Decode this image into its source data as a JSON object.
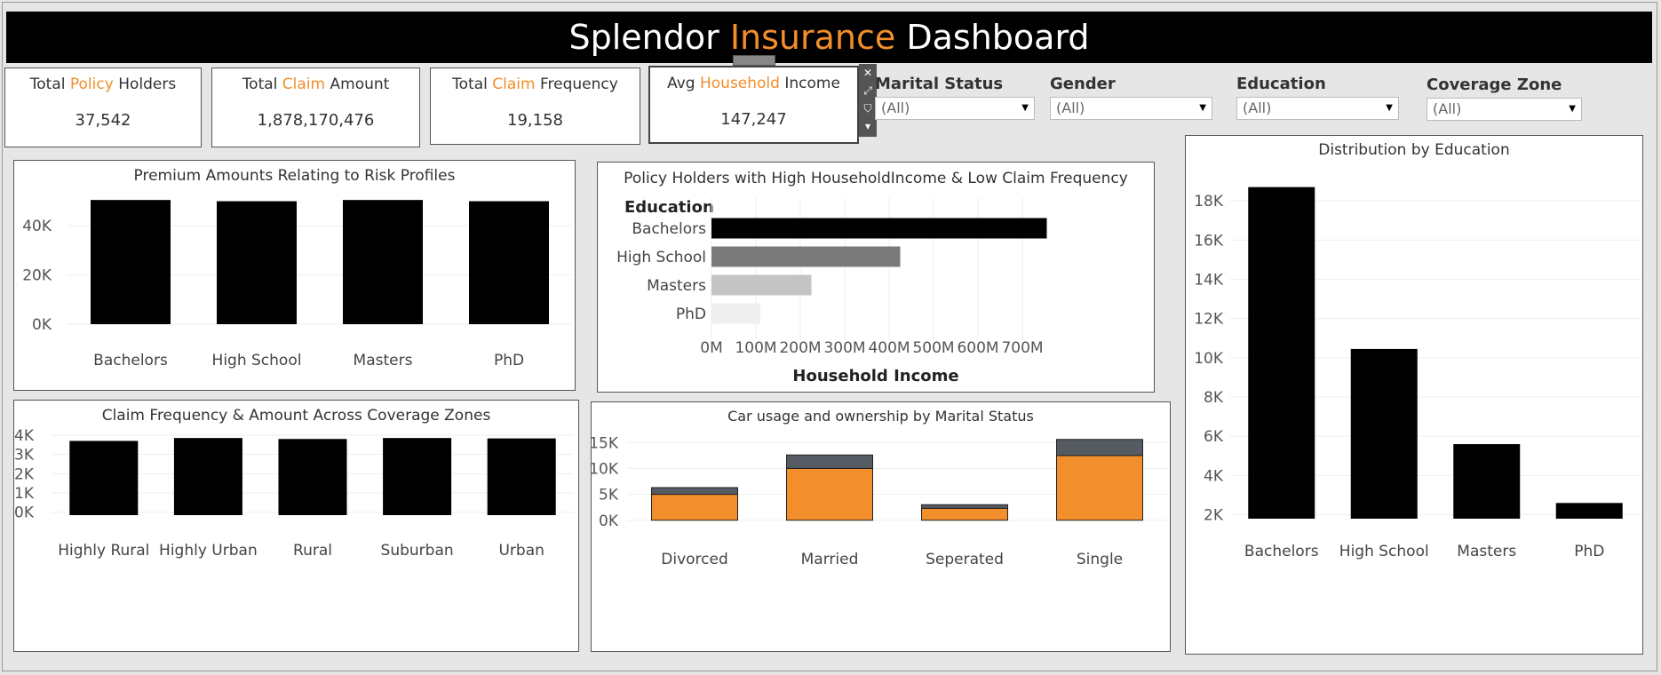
{
  "header": {
    "title_part1": "Splendor",
    "title_accent": "Insurance",
    "title_part2": "Dashboard"
  },
  "colors": {
    "accent": "#f28e2b",
    "bar": "#000000",
    "stack_top": "#555a63"
  },
  "kpis": [
    {
      "pre": "Total",
      "accent": "Policy",
      "post": "Holders",
      "value": "37,542"
    },
    {
      "pre": "Total",
      "accent": "Claim",
      "post": "Amount",
      "value": "1,878,170,476"
    },
    {
      "pre": "Total",
      "accent": "Claim",
      "post": "Frequency",
      "value": "19,158"
    },
    {
      "pre": "Avg",
      "accent": "Household",
      "post": "Income",
      "value": "147,247"
    }
  ],
  "tools": {
    "close": "✕",
    "popout": "⤢",
    "filter": "⛉",
    "more": "▾"
  },
  "filters": [
    {
      "label": "Marital Status",
      "value": "(All)"
    },
    {
      "label": "Gender",
      "value": "(All)"
    },
    {
      "label": "Education",
      "value": "(All)"
    },
    {
      "label": "Coverage Zone",
      "value": "(All)"
    }
  ],
  "panels": {
    "premium": {
      "title": "Premium Amounts Relating to Risk Profiles"
    },
    "highincome": {
      "title": "Policy Holders with High HouseholdIncome & Low Claim Frequency",
      "dim_label": "Education",
      "xlabel": "Household Income"
    },
    "education": {
      "title": "Distribution by Education"
    },
    "claims": {
      "title": "Claim Frequency & Amount Across Coverage Zones"
    },
    "car": {
      "title": "Car usage and ownership by Marital Status"
    }
  },
  "chart_data": [
    {
      "id": "premium",
      "type": "bar",
      "title": "Premium Amounts Relating to Risk Profiles",
      "categories": [
        "Bachelors",
        "High School",
        "Masters",
        "PhD"
      ],
      "values": [
        50500,
        50000,
        50500,
        50000
      ],
      "ylim": [
        0,
        52000
      ],
      "yticks": [
        {
          "v": 0,
          "label": "0K"
        },
        {
          "v": 20000,
          "label": "20K"
        },
        {
          "v": 40000,
          "label": "40K"
        }
      ],
      "grid": true
    },
    {
      "id": "highincome",
      "type": "bar",
      "orientation": "horizontal",
      "title": "Policy Holders with High HouseholdIncome & Low Claim Frequency",
      "categories": [
        "Bachelors",
        "High School",
        "Masters",
        "PhD"
      ],
      "values": [
        755000000,
        425000000,
        225000000,
        110000000
      ],
      "colors": [
        "#000000",
        "#7a7a7a",
        "#c4c4c4",
        "#efefef"
      ],
      "xlim": [
        0,
        800000000
      ],
      "xticks": [
        {
          "v": 0,
          "label": "0M"
        },
        {
          "v": 100000000,
          "label": "100M"
        },
        {
          "v": 200000000,
          "label": "200M"
        },
        {
          "v": 300000000,
          "label": "300M"
        },
        {
          "v": 400000000,
          "label": "400M"
        },
        {
          "v": 500000000,
          "label": "500M"
        },
        {
          "v": 600000000,
          "label": "600M"
        },
        {
          "v": 700000000,
          "label": "700M"
        }
      ],
      "xlabel": "Household Income",
      "ylabel": "Education",
      "grid": true
    },
    {
      "id": "education",
      "type": "bar",
      "title": "Distribution by Education",
      "categories": [
        "Bachelors",
        "High School",
        "Masters",
        "PhD"
      ],
      "values": [
        18700,
        10450,
        5600,
        2600
      ],
      "ylim": [
        1800,
        19500
      ],
      "yticks": [
        {
          "v": 2000,
          "label": "2K"
        },
        {
          "v": 4000,
          "label": "4K"
        },
        {
          "v": 6000,
          "label": "6K"
        },
        {
          "v": 8000,
          "label": "8K"
        },
        {
          "v": 10000,
          "label": "10K"
        },
        {
          "v": 12000,
          "label": "12K"
        },
        {
          "v": 14000,
          "label": "14K"
        },
        {
          "v": 16000,
          "label": "16K"
        },
        {
          "v": 18000,
          "label": "18K"
        }
      ],
      "grid": true
    },
    {
      "id": "claims",
      "type": "bar",
      "title": "Claim Frequency & Amount Across Coverage Zones",
      "categories": [
        "Highly Rural",
        "Highly Urban",
        "Rural",
        "Suburban",
        "Urban"
      ],
      "values": [
        3700,
        3850,
        3800,
        3850,
        3830
      ],
      "ylim": [
        -150,
        3950
      ],
      "yticks": [
        {
          "v": 0,
          "label": "0K"
        },
        {
          "v": 1000,
          "label": "1K"
        },
        {
          "v": 2000,
          "label": "2K"
        },
        {
          "v": 3000,
          "label": "3K"
        },
        {
          "v": 4000,
          "label": "4K"
        }
      ],
      "grid": true
    },
    {
      "id": "car",
      "type": "bar",
      "stacked": true,
      "title": "Car usage and ownership by Marital Status",
      "categories": [
        "Divorced",
        "Married",
        "Seperated",
        "Single"
      ],
      "series": [
        {
          "values": [
            5000,
            10000,
            2300,
            12500
          ],
          "color": "#f28e2b"
        },
        {
          "values": [
            1300,
            2600,
            700,
            3100
          ],
          "color": "#555a63"
        }
      ],
      "ylim": [
        -900,
        15900
      ],
      "yticks": [
        {
          "v": 0,
          "label": "0K"
        },
        {
          "v": 5000,
          "label": "5K"
        },
        {
          "v": 10000,
          "label": "10K"
        },
        {
          "v": 15000,
          "label": "15K"
        }
      ],
      "grid": true
    }
  ]
}
